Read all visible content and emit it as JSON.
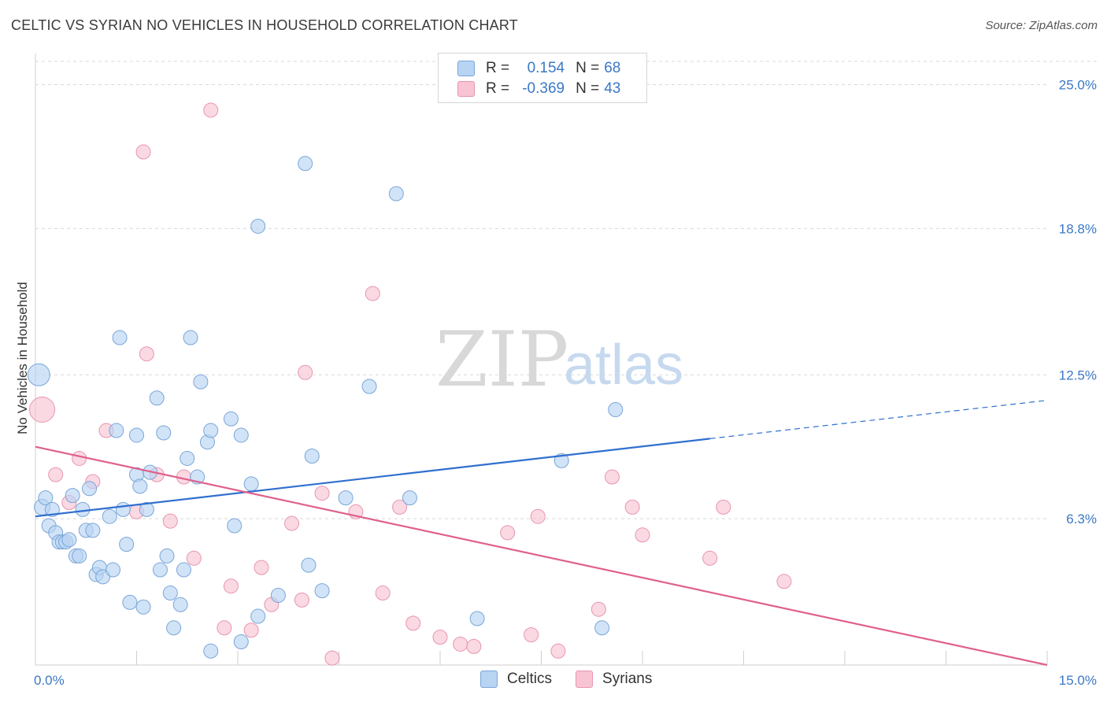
{
  "header": {
    "title": "CELTIC VS SYRIAN NO VEHICLES IN HOUSEHOLD CORRELATION CHART",
    "source": "Source: ZipAtlas.com"
  },
  "watermark": {
    "zip": "ZIP",
    "atlas": "atlas"
  },
  "legend": {
    "rows": [
      {
        "r_label": "R =",
        "r_value": "0.154",
        "n_label": "N =",
        "n_value": "68"
      },
      {
        "r_label": "R =",
        "r_value": "-0.369",
        "n_label": "N =",
        "n_value": "43"
      }
    ]
  },
  "bottom_legend": {
    "celtics": "Celtics",
    "syrians": "Syrians"
  },
  "colors": {
    "celtics_fill": "#b8d4f3",
    "celtics_stroke": "#7aa6d8",
    "celtics_line": "#2f6fcf",
    "syrians_fill": "#f8c4d3",
    "syrians_stroke": "#e895af",
    "syrians_line": "#e0608c",
    "tick_text": "#3b78c6",
    "grid": "#d9d9d9"
  },
  "chart_data": {
    "type": "scatter",
    "title": "CELTIC VS SYRIAN NO VEHICLES IN HOUSEHOLD CORRELATION CHART",
    "xlabel": "",
    "ylabel": "No Vehicles in Household",
    "xlim": [
      0,
      15
    ],
    "ylim": [
      0,
      26
    ],
    "x_tick_labels": [
      {
        "value": 0,
        "label": "0.0%"
      },
      {
        "value": 15,
        "label": "15.0%"
      }
    ],
    "y_tick_labels": [
      {
        "value": 6.3,
        "label": "6.3%"
      },
      {
        "value": 12.5,
        "label": "12.5%"
      },
      {
        "value": 18.8,
        "label": "18.8%"
      },
      {
        "value": 25.0,
        "label": "25.0%"
      }
    ],
    "grid": "horizontal dashed",
    "series": [
      {
        "name": "Celtics",
        "trend": {
          "x0": 0,
          "y0": 6.4,
          "x1": 10,
          "y1": 9.75,
          "dashed_to_x": 15,
          "dashed_to_y": 11.4
        },
        "points": [
          [
            0.05,
            12.5,
            14
          ],
          [
            0.1,
            6.8,
            10
          ],
          [
            0.15,
            7.2,
            9
          ],
          [
            0.2,
            6.0,
            9
          ],
          [
            0.25,
            6.7,
            9
          ],
          [
            0.3,
            5.7,
            9
          ],
          [
            0.35,
            5.3,
            9
          ],
          [
            0.4,
            5.3,
            9
          ],
          [
            0.45,
            5.3,
            9
          ],
          [
            0.5,
            5.4,
            9
          ],
          [
            0.55,
            7.3,
            9
          ],
          [
            0.6,
            4.7,
            9
          ],
          [
            0.65,
            4.7,
            9
          ],
          [
            0.7,
            6.7,
            9
          ],
          [
            0.75,
            5.8,
            9
          ],
          [
            0.8,
            7.6,
            9
          ],
          [
            0.85,
            5.8,
            9
          ],
          [
            0.9,
            3.9,
            9
          ],
          [
            0.95,
            4.2,
            9
          ],
          [
            1.0,
            3.8,
            9
          ],
          [
            1.1,
            6.4,
            9
          ],
          [
            1.15,
            4.1,
            9
          ],
          [
            1.2,
            10.1,
            9
          ],
          [
            1.25,
            14.1,
            9
          ],
          [
            1.3,
            6.7,
            9
          ],
          [
            1.35,
            5.2,
            9
          ],
          [
            1.4,
            2.7,
            9
          ],
          [
            1.5,
            9.9,
            9
          ],
          [
            1.5,
            8.2,
            9
          ],
          [
            1.55,
            7.7,
            9
          ],
          [
            1.6,
            2.5,
            9
          ],
          [
            1.65,
            6.7,
            9
          ],
          [
            1.7,
            8.3,
            9
          ],
          [
            1.8,
            11.5,
            9
          ],
          [
            1.85,
            4.1,
            9
          ],
          [
            1.9,
            10.0,
            9
          ],
          [
            1.95,
            4.7,
            9
          ],
          [
            2.0,
            3.1,
            9
          ],
          [
            2.05,
            1.6,
            9
          ],
          [
            2.15,
            2.6,
            9
          ],
          [
            2.2,
            4.1,
            9
          ],
          [
            2.25,
            8.9,
            9
          ],
          [
            2.3,
            14.1,
            9
          ],
          [
            2.4,
            8.1,
            9
          ],
          [
            2.45,
            12.2,
            9
          ],
          [
            2.55,
            9.6,
            9
          ],
          [
            2.6,
            10.1,
            9
          ],
          [
            2.6,
            0.6,
            9
          ],
          [
            2.9,
            10.6,
            9
          ],
          [
            2.95,
            6.0,
            9
          ],
          [
            3.05,
            1.0,
            9
          ],
          [
            3.05,
            9.9,
            9
          ],
          [
            3.2,
            7.8,
            9
          ],
          [
            3.3,
            2.1,
            9
          ],
          [
            3.3,
            18.9,
            9
          ],
          [
            3.6,
            3.0,
            9
          ],
          [
            4.0,
            21.6,
            9
          ],
          [
            4.05,
            4.3,
            9
          ],
          [
            4.1,
            9.0,
            9
          ],
          [
            4.25,
            3.2,
            9
          ],
          [
            4.6,
            7.2,
            9
          ],
          [
            4.95,
            12.0,
            9
          ],
          [
            5.35,
            20.3,
            9
          ],
          [
            5.55,
            7.2,
            9
          ],
          [
            6.55,
            2.0,
            9
          ],
          [
            7.8,
            8.8,
            9
          ],
          [
            8.4,
            1.6,
            9
          ],
          [
            8.6,
            11.0,
            9
          ]
        ]
      },
      {
        "name": "Syrians",
        "trend": {
          "x0": 0,
          "y0": 9.4,
          "x1": 15,
          "y1": 0
        },
        "points": [
          [
            0.1,
            11.0,
            16
          ],
          [
            0.3,
            8.2,
            9
          ],
          [
            0.5,
            7.0,
            9
          ],
          [
            0.65,
            8.9,
            9
          ],
          [
            0.85,
            7.9,
            9
          ],
          [
            1.05,
            10.1,
            9
          ],
          [
            1.5,
            6.6,
            9
          ],
          [
            1.6,
            22.1,
            9
          ],
          [
            1.65,
            13.4,
            9
          ],
          [
            1.8,
            8.2,
            9
          ],
          [
            2.0,
            6.2,
            9
          ],
          [
            2.2,
            8.1,
            9
          ],
          [
            2.35,
            4.6,
            9
          ],
          [
            2.6,
            23.9,
            9
          ],
          [
            2.8,
            1.6,
            9
          ],
          [
            2.9,
            3.4,
            9
          ],
          [
            3.2,
            1.5,
            9
          ],
          [
            3.35,
            4.2,
            9
          ],
          [
            3.5,
            2.6,
            9
          ],
          [
            3.8,
            6.1,
            9
          ],
          [
            3.95,
            2.8,
            9
          ],
          [
            4.0,
            12.6,
            9
          ],
          [
            4.25,
            7.4,
            9
          ],
          [
            4.4,
            0.3,
            9
          ],
          [
            4.75,
            6.6,
            9
          ],
          [
            5.0,
            16.0,
            9
          ],
          [
            5.15,
            3.1,
            9
          ],
          [
            5.4,
            6.8,
            9
          ],
          [
            5.6,
            1.8,
            9
          ],
          [
            6.0,
            1.2,
            9
          ],
          [
            6.3,
            0.9,
            9
          ],
          [
            6.5,
            0.8,
            9
          ],
          [
            7.0,
            5.7,
            9
          ],
          [
            7.35,
            1.3,
            9
          ],
          [
            7.45,
            6.4,
            9
          ],
          [
            7.75,
            0.6,
            9
          ],
          [
            8.35,
            2.4,
            9
          ],
          [
            8.55,
            8.1,
            9
          ],
          [
            8.85,
            6.8,
            9
          ],
          [
            9.0,
            5.6,
            9
          ],
          [
            10.2,
            6.8,
            9
          ],
          [
            10.0,
            4.6,
            9
          ],
          [
            11.1,
            3.6,
            9
          ]
        ]
      }
    ]
  }
}
